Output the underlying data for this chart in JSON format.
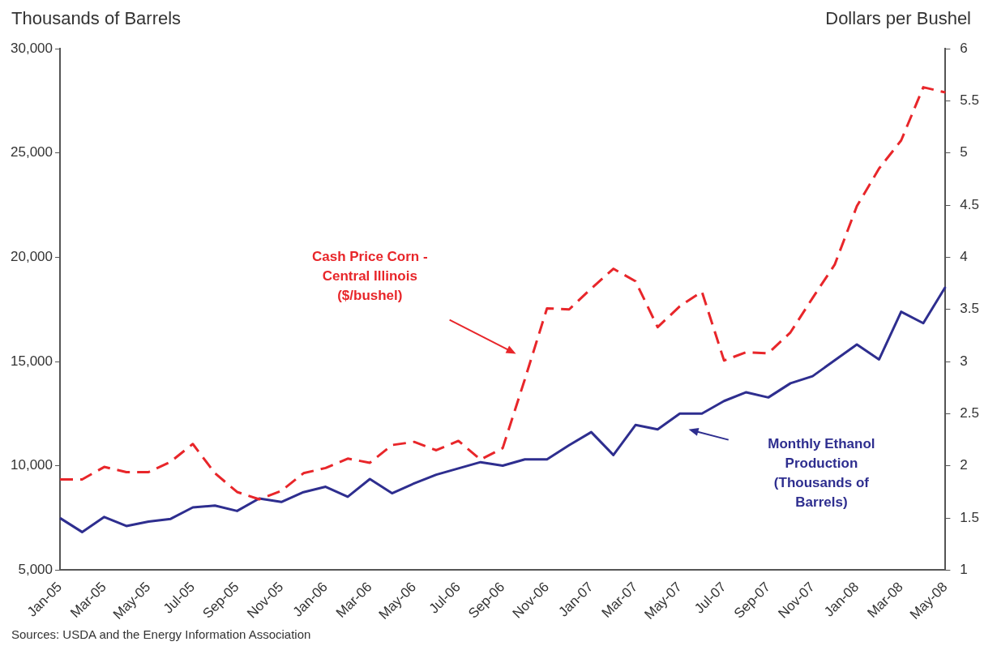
{
  "chart_data": {
    "type": "line",
    "ylabel": "Thousands of Barrels",
    "y2label": "Dollars  per Bushel",
    "categories": [
      "Jan-05",
      null,
      "Mar-05",
      null,
      "May-05",
      null,
      "Jul-05",
      null,
      "Sep-05",
      null,
      "Nov-05",
      null,
      "Jan-06",
      null,
      "Mar-06",
      null,
      "May-06",
      null,
      "Jul-06",
      null,
      "Sep-06",
      null,
      "Nov-06",
      null,
      "Jan-07",
      null,
      "Mar-07",
      null,
      "May-07",
      null,
      "Jul-07",
      null,
      "Sep-07",
      null,
      "Nov-07",
      null,
      "Jan-08",
      null,
      "Mar-08",
      null,
      "May-08"
    ],
    "series": [
      {
        "name": "Cash Price Corn - Central Illinois ($/bushel)",
        "color": "#e8262a",
        "axis": "y2",
        "line_style": "dashed",
        "values": [
          1.87,
          1.87,
          1.99,
          1.94,
          1.94,
          2.04,
          2.21,
          1.93,
          1.75,
          1.68,
          1.76,
          1.93,
          1.98,
          2.07,
          2.03,
          2.2,
          2.23,
          2.15,
          2.24,
          2.06,
          2.17,
          2.83,
          3.51,
          3.5,
          3.7,
          3.89,
          3.77,
          3.33,
          3.53,
          3.67,
          3.01,
          3.09,
          3.08,
          3.28,
          3.61,
          3.93,
          4.49,
          4.85,
          5.12,
          5.63,
          5.58
        ]
      },
      {
        "name": "Monthly Ethanol Production (Thousands of Barrels)",
        "color": "#2e2e8f",
        "line_style": "solid",
        "values": [
          7500,
          6830,
          7550,
          7120,
          7330,
          7460,
          8010,
          8100,
          7840,
          8440,
          8270,
          8740,
          9000,
          8520,
          9370,
          8690,
          9160,
          9580,
          9880,
          10180,
          10010,
          10310,
          10310,
          10990,
          11620,
          10520,
          11960,
          11750,
          12510,
          12510,
          13110,
          13530,
          13280,
          13960,
          14300,
          15060,
          15820,
          15100,
          17390,
          16840,
          18580
        ]
      }
    ],
    "ylim": [
      5000,
      30000
    ],
    "yticks": [
      {
        "value": 5000,
        "label": "5,000"
      },
      {
        "value": 10000,
        "label": "10,000"
      },
      {
        "value": 15000,
        "label": "15,000"
      },
      {
        "value": 20000,
        "label": "20,000"
      },
      {
        "value": 25000,
        "label": "25,000"
      },
      {
        "value": 30000,
        "label": "30,000"
      }
    ],
    "y2lim": [
      1,
      6
    ],
    "y2ticks": [
      1,
      1.5,
      2,
      2.5,
      3,
      3.5,
      4,
      4.5,
      5,
      5.5,
      6
    ],
    "grid": false,
    "legend": false,
    "marker": "none",
    "annotations": [
      "Sources: USDA and the Energy Information Association"
    ]
  }
}
